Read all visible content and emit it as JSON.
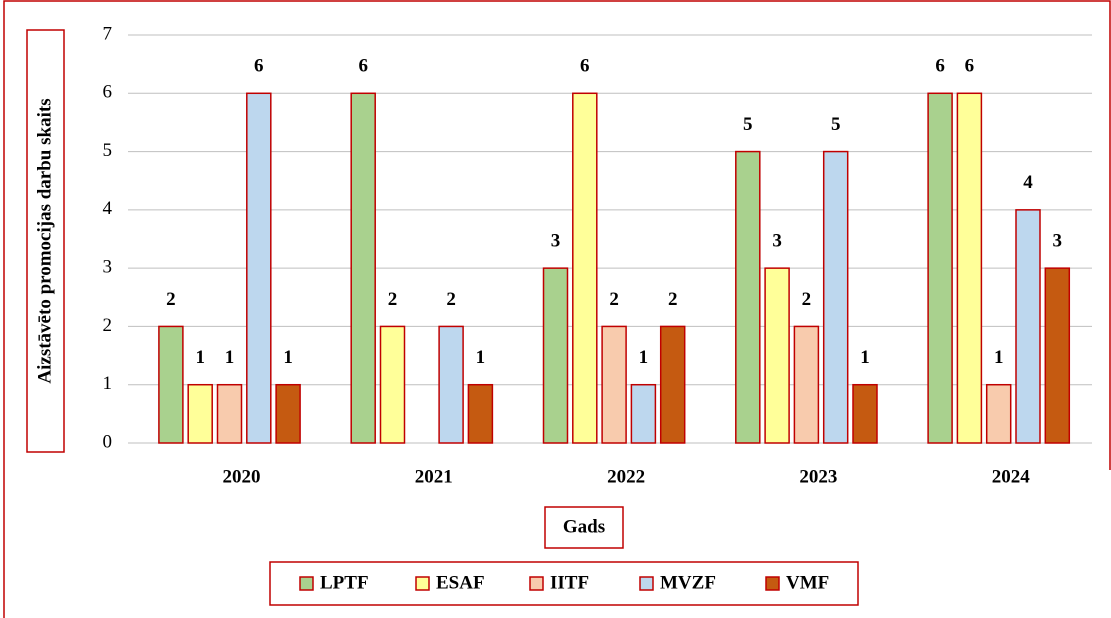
{
  "chart_data": {
    "type": "bar",
    "x_label": "Gads",
    "y_label": "Aizstāvēto promocijas darbu skaits",
    "categories": [
      "2020",
      "2021",
      "2022",
      "2023",
      "2024"
    ],
    "series": [
      {
        "name": "LPTF",
        "color": "#a9d18e",
        "values": [
          2,
          6,
          3,
          5,
          6
        ]
      },
      {
        "name": "ESAF",
        "color": "#ffff99",
        "values": [
          1,
          2,
          6,
          3,
          6
        ]
      },
      {
        "name": "IITF",
        "color": "#f8cbad",
        "values": [
          1,
          null,
          2,
          2,
          1
        ]
      },
      {
        "name": "MVZF",
        "color": "#bdd7ee",
        "values": [
          6,
          2,
          1,
          5,
          4
        ]
      },
      {
        "name": "VMF",
        "color": "#c55a11",
        "values": [
          1,
          1,
          2,
          1,
          3
        ]
      }
    ],
    "ylim": [
      0,
      7
    ],
    "yticks": [
      0,
      1,
      2,
      3,
      4,
      5,
      6,
      7
    ],
    "grid": true,
    "legend": "bottom",
    "edge_color": "#c00000"
  }
}
